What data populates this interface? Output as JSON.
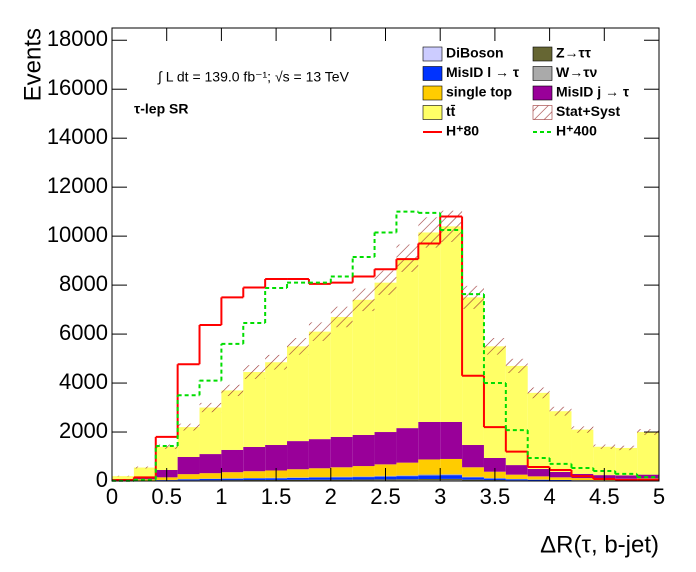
{
  "chart_data": {
    "type": "histogram",
    "stacked": true,
    "xlabel": "ΔR(τ, b-jet)",
    "ylabel": "Events",
    "annotations": [
      "∫ L dt = 139.0 fb⁻¹;  √s = 13 TeV",
      "τ-lep SR"
    ],
    "bins": [
      0,
      0.2,
      0.4,
      0.6,
      0.8,
      1.0,
      1.2,
      1.4,
      1.6,
      1.8,
      2.0,
      2.2,
      2.4,
      2.6,
      2.8,
      3.0,
      3.2,
      3.4,
      3.6,
      3.8,
      4.0,
      4.2,
      4.4,
      4.6,
      4.8,
      5.0
    ],
    "xlim": [
      0,
      5
    ],
    "ylim": [
      0,
      18500
    ],
    "xticks": [
      0,
      0.5,
      1,
      1.5,
      2,
      2.5,
      3,
      3.5,
      4,
      4.5,
      5
    ],
    "yticks": [
      0,
      2000,
      4000,
      6000,
      8000,
      10000,
      12000,
      14000,
      16000,
      18000
    ],
    "series": [
      {
        "name": "DiBoson",
        "color": "#ccccff",
        "values": [
          2,
          3,
          6,
          10,
          12,
          14,
          15,
          16,
          18,
          20,
          22,
          24,
          26,
          28,
          32,
          34,
          22,
          15,
          10,
          8,
          6,
          5,
          4,
          4,
          4
        ]
      },
      {
        "name": "Z→ττ",
        "color": "#666633",
        "values": [
          3,
          5,
          10,
          18,
          20,
          22,
          25,
          27,
          30,
          32,
          34,
          36,
          40,
          44,
          50,
          52,
          34,
          24,
          16,
          12,
          10,
          8,
          6,
          6,
          6
        ]
      },
      {
        "name": "MisID l → τ",
        "color": "#0033ff",
        "values": [
          5,
          10,
          20,
          40,
          50,
          60,
          65,
          70,
          80,
          88,
          94,
          100,
          114,
          128,
          148,
          154,
          94,
          61,
          44,
          30,
          24,
          17,
          15,
          12,
          15
        ]
      },
      {
        "name": "W→τν",
        "color": "#aaaaaa",
        "values": [
          2,
          4,
          8,
          12,
          14,
          16,
          18,
          20,
          22,
          24,
          26,
          28,
          30,
          32,
          36,
          38,
          24,
          16,
          12,
          8,
          6,
          5,
          4,
          4,
          4
        ]
      },
      {
        "name": "single top",
        "color": "#ffcc00",
        "values": [
          28,
          48,
          106,
          200,
          224,
          248,
          277,
          297,
          330,
          356,
          384,
          422,
          470,
          518,
          614,
          622,
          386,
          264,
          178,
          132,
          104,
          85,
          71,
          64,
          71
        ]
      },
      {
        "name": "MisID j → τ",
        "color": "#990099",
        "values": [
          40,
          80,
          300,
          700,
          780,
          910,
          990,
          1040,
          1150,
          1190,
          1240,
          1270,
          1320,
          1410,
          1530,
          1510,
          910,
          560,
          390,
          300,
          220,
          170,
          140,
          140,
          160
        ]
      },
      {
        "name": "tt̄",
        "color": "#ffff66",
        "values": [
          120,
          400,
          950,
          1220,
          1900,
          2430,
          3060,
          3380,
          3870,
          4390,
          4900,
          5520,
          6100,
          6940,
          7740,
          7990,
          6030,
          4560,
          4050,
          3110,
          2480,
          1810,
          1160,
          1120,
          1740
        ]
      }
    ],
    "uncertainty": {
      "name": "Stat+Syst",
      "color": "#993333",
      "values": [
        15,
        40,
        90,
        140,
        190,
        230,
        280,
        300,
        340,
        380,
        420,
        460,
        500,
        560,
        620,
        640,
        470,
        340,
        290,
        220,
        180,
        130,
        90,
        90,
        120
      ]
    },
    "lines": [
      {
        "name": "H⁺80",
        "color": "#ff0000",
        "style": "solid",
        "values": [
          40,
          150,
          1800,
          4770,
          6370,
          7500,
          7900,
          8250,
          8250,
          8050,
          8100,
          8350,
          8650,
          9060,
          9700,
          10800,
          4300,
          2200,
          1200,
          570,
          450,
          200,
          80,
          40,
          40
        ]
      },
      {
        "name": "H⁺400",
        "color": "#00dd00",
        "style": "dashed",
        "values": [
          10,
          50,
          1430,
          3500,
          4100,
          5600,
          6450,
          7880,
          8100,
          8100,
          8350,
          9150,
          10150,
          11000,
          10950,
          10250,
          7630,
          4000,
          2080,
          940,
          700,
          530,
          410,
          290,
          160
        ]
      }
    ]
  }
}
